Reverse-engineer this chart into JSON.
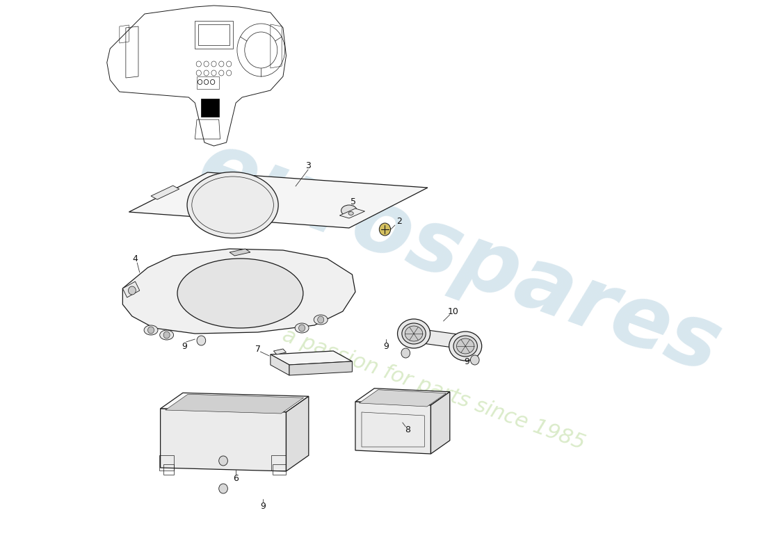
{
  "bg_color": "#ffffff",
  "line_color": "#1a1a1a",
  "wm1_color": "#c8dde8",
  "wm2_color": "#d4e8c0",
  "fig_w": 11.0,
  "fig_h": 8.0,
  "dpi": 100
}
